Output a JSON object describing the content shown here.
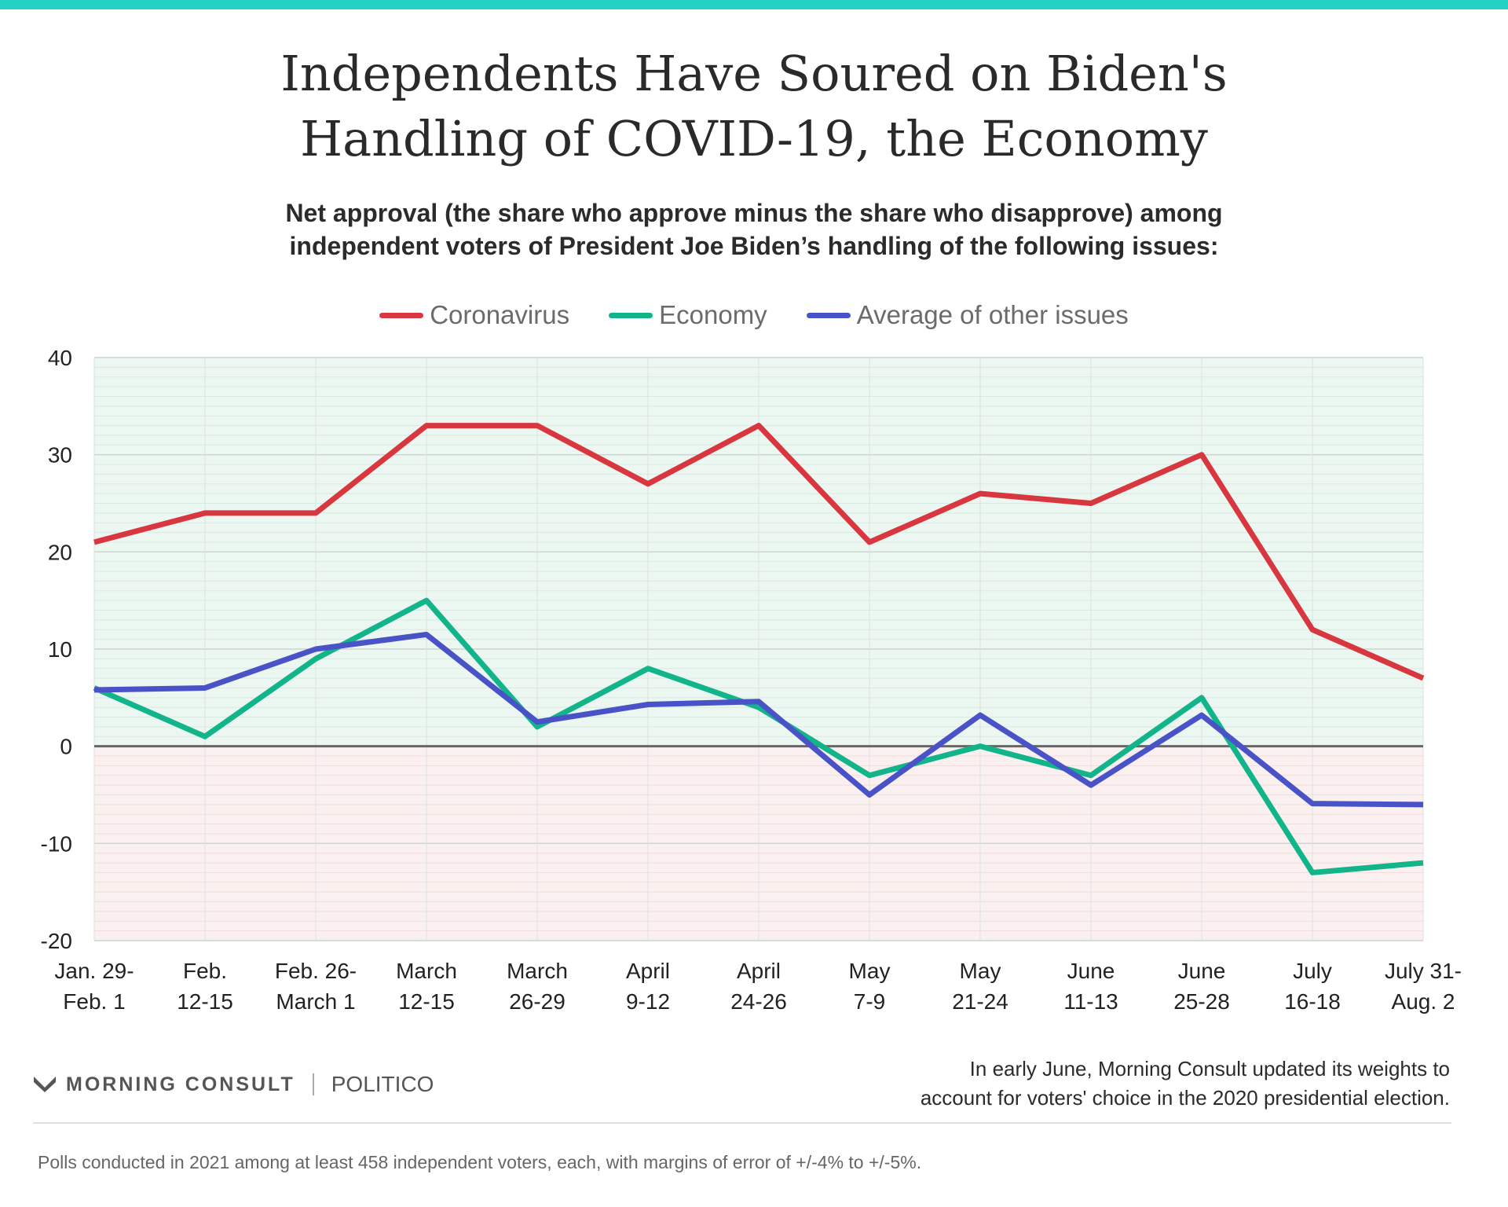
{
  "title_lines": [
    "Independents Have Soured on Biden's",
    "Handling of COVID-19, the Economy"
  ],
  "subtitle_lines": [
    "Net approval (the share who approve minus the share who disapprove) among",
    "independent voters of President Joe Biden’s handling of the following issues:"
  ],
  "chart_data": {
    "type": "line",
    "categories": [
      [
        "Jan. 29-",
        "Feb. 1"
      ],
      [
        "Feb.",
        "12-15"
      ],
      [
        "Feb. 26-",
        "March 1"
      ],
      [
        "March",
        "12-15"
      ],
      [
        "March",
        "26-29"
      ],
      [
        "April",
        "9-12"
      ],
      [
        "April",
        "24-26"
      ],
      [
        "May",
        "7-9"
      ],
      [
        "May",
        "21-24"
      ],
      [
        "June",
        "11-13"
      ],
      [
        "June",
        "25-28"
      ],
      [
        "July",
        "16-18"
      ],
      [
        "July 31-",
        "Aug. 2"
      ]
    ],
    "series": [
      {
        "name": "Coronavirus",
        "color": "#d9373f",
        "values": [
          21,
          24,
          24,
          33,
          33,
          27,
          33,
          21,
          26,
          25,
          30,
          12,
          7
        ]
      },
      {
        "name": "Economy",
        "color": "#12b48a",
        "values": [
          6,
          1,
          9,
          15,
          2,
          8,
          4,
          -3,
          0,
          -3,
          5,
          -13,
          -12
        ]
      },
      {
        "name": "Average of other issues",
        "color": "#4a52c8",
        "values": [
          5.8,
          6,
          10,
          11.5,
          2.5,
          4.3,
          4.6,
          -5,
          3.2,
          -4,
          3.2,
          -5.9,
          -6
        ]
      }
    ],
    "yticks": [
      "40",
      "30",
      "20",
      "10",
      "0",
      "-10",
      "-20"
    ],
    "ylim": [
      -20,
      40
    ],
    "grid": true,
    "legend": "top-center",
    "background": {
      "positive": "#edf7f2",
      "negative": "#fbf0f0"
    }
  },
  "source": {
    "brand": "MORNING CONSULT",
    "partner": "POLITICO",
    "note_lines": [
      "In early June, Morning Consult updated its weights to",
      "account for voters' choice in the 2020 presidential election."
    ],
    "footnote": "Polls conducted in 2021 among at least 458 independent voters, each, with margins of error of +/-4% to +/-5%."
  }
}
